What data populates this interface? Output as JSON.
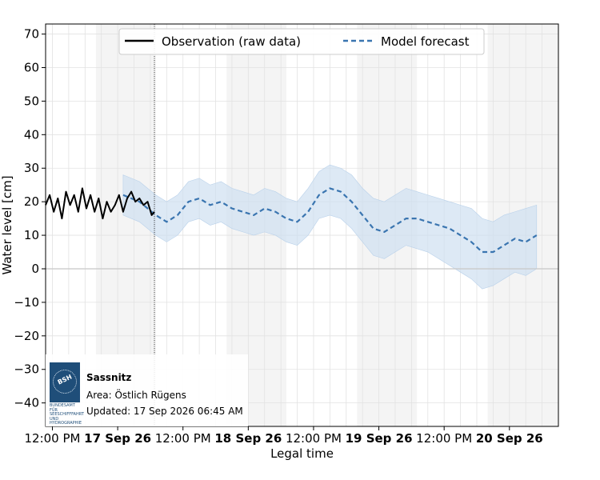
{
  "chart_data": {
    "type": "line",
    "xlabel": "Legal time",
    "ylabel": "Water level [cm]",
    "ylim": [
      -47,
      73
    ],
    "yticks": [
      70,
      60,
      50,
      40,
      30,
      20,
      10,
      0,
      -10,
      -20,
      -30,
      -40
    ],
    "xlim": [
      "2026-09-16 10:45",
      "2026-09-20 09:00"
    ],
    "xticks": [
      {
        "t": "2026-09-16 12:00",
        "label": "12:00 PM",
        "bold": false
      },
      {
        "t": "2026-09-17 00:00",
        "label": "17 Sep 26",
        "bold": true
      },
      {
        "t": "2026-09-17 12:00",
        "label": "12:00 PM",
        "bold": false
      },
      {
        "t": "2026-09-18 00:00",
        "label": "18 Sep 26",
        "bold": true
      },
      {
        "t": "2026-09-18 12:00",
        "label": "12:00 PM",
        "bold": false
      },
      {
        "t": "2026-09-19 00:00",
        "label": "19 Sep 26",
        "bold": true
      },
      {
        "t": "2026-09-19 12:00",
        "label": "12:00 PM",
        "bold": false
      },
      {
        "t": "2026-09-20 00:00",
        "label": "20 Sep 26",
        "bold": true
      }
    ],
    "night_bands": [
      [
        "2026-09-16 20:00",
        "2026-09-17 07:00"
      ],
      [
        "2026-09-17 20:00",
        "2026-09-18 07:00"
      ],
      [
        "2026-09-18 20:00",
        "2026-09-19 07:00"
      ],
      [
        "2026-09-19 20:00",
        "2026-09-20 09:00"
      ]
    ],
    "now_marker": "2026-09-17 06:45",
    "grid": true,
    "legend_position": "top-center",
    "series": [
      {
        "name": "Observation (raw data)",
        "style": "solid",
        "color": "#000000",
        "points": [
          [
            "2026-09-16 10:45",
            19
          ],
          [
            "2026-09-16 11:30",
            22
          ],
          [
            "2026-09-16 12:15",
            17
          ],
          [
            "2026-09-16 13:00",
            21
          ],
          [
            "2026-09-16 13:45",
            15
          ],
          [
            "2026-09-16 14:30",
            23
          ],
          [
            "2026-09-16 15:15",
            19
          ],
          [
            "2026-09-16 16:00",
            22
          ],
          [
            "2026-09-16 16:45",
            17
          ],
          [
            "2026-09-16 17:30",
            24
          ],
          [
            "2026-09-16 18:15",
            18
          ],
          [
            "2026-09-16 19:00",
            22
          ],
          [
            "2026-09-16 19:45",
            17
          ],
          [
            "2026-09-16 20:30",
            21
          ],
          [
            "2026-09-16 21:15",
            15
          ],
          [
            "2026-09-16 22:00",
            20
          ],
          [
            "2026-09-16 22:45",
            17
          ],
          [
            "2026-09-16 23:30",
            19
          ],
          [
            "2026-09-17 00:15",
            22
          ],
          [
            "2026-09-17 01:00",
            17
          ],
          [
            "2026-09-17 01:45",
            21
          ],
          [
            "2026-09-17 02:30",
            23
          ],
          [
            "2026-09-17 03:15",
            20
          ],
          [
            "2026-09-17 04:00",
            21
          ],
          [
            "2026-09-17 04:45",
            19
          ],
          [
            "2026-09-17 05:30",
            20
          ],
          [
            "2026-09-17 06:15",
            16
          ],
          [
            "2026-09-17 06:45",
            17
          ]
        ]
      },
      {
        "name": "Model forecast",
        "style": "dashed",
        "color": "#3a75b0",
        "band_color": "#cfe0f1",
        "points": [
          [
            "2026-09-17 01:00",
            22,
            28,
            16
          ],
          [
            "2026-09-17 04:00",
            20,
            26,
            14
          ],
          [
            "2026-09-17 07:00",
            16,
            22,
            10
          ],
          [
            "2026-09-17 09:00",
            14,
            20,
            8
          ],
          [
            "2026-09-17 11:00",
            16,
            22,
            10
          ],
          [
            "2026-09-17 13:00",
            20,
            26,
            14
          ],
          [
            "2026-09-17 15:00",
            21,
            27,
            15
          ],
          [
            "2026-09-17 17:00",
            19,
            25,
            13
          ],
          [
            "2026-09-17 19:00",
            20,
            26,
            14
          ],
          [
            "2026-09-17 21:00",
            18,
            24,
            12
          ],
          [
            "2026-09-17 23:00",
            17,
            23,
            11
          ],
          [
            "2026-09-18 01:00",
            16,
            22,
            10
          ],
          [
            "2026-09-18 03:00",
            18,
            24,
            11
          ],
          [
            "2026-09-18 05:00",
            17,
            23,
            10
          ],
          [
            "2026-09-18 07:00",
            15,
            21,
            8
          ],
          [
            "2026-09-18 09:00",
            14,
            20,
            7
          ],
          [
            "2026-09-18 11:00",
            17,
            24,
            10
          ],
          [
            "2026-09-18 13:00",
            22,
            29,
            15
          ],
          [
            "2026-09-18 15:00",
            24,
            31,
            16
          ],
          [
            "2026-09-18 17:00",
            23,
            30,
            15
          ],
          [
            "2026-09-18 19:00",
            20,
            28,
            12
          ],
          [
            "2026-09-18 21:00",
            16,
            24,
            8
          ],
          [
            "2026-09-18 23:00",
            12,
            21,
            4
          ],
          [
            "2026-09-19 01:00",
            11,
            20,
            3
          ],
          [
            "2026-09-19 03:00",
            13,
            22,
            5
          ],
          [
            "2026-09-19 05:00",
            15,
            24,
            7
          ],
          [
            "2026-09-19 07:00",
            15,
            23,
            6
          ],
          [
            "2026-09-19 09:00",
            14,
            22,
            5
          ],
          [
            "2026-09-19 11:00",
            13,
            21,
            3
          ],
          [
            "2026-09-19 13:00",
            12,
            20,
            1
          ],
          [
            "2026-09-19 15:00",
            10,
            19,
            -1
          ],
          [
            "2026-09-19 17:00",
            8,
            18,
            -3
          ],
          [
            "2026-09-19 19:00",
            5,
            15,
            -6
          ],
          [
            "2026-09-19 21:00",
            5,
            14,
            -5
          ],
          [
            "2026-09-19 23:00",
            7,
            16,
            -3
          ],
          [
            "2026-09-20 01:00",
            9,
            17,
            -1
          ],
          [
            "2026-09-20 03:00",
            8,
            18,
            -2
          ],
          [
            "2026-09-20 05:00",
            10,
            19,
            0
          ]
        ]
      }
    ]
  },
  "info": {
    "logo_text": "BSH",
    "logo_caption": "BUNDESAMT FÜR\nSEESCHIFFFAHRT\nUND\nHYDROGRAPHIE",
    "station": "Sassnitz",
    "area": "Area: Östlich Rügens",
    "updated": "Updated: 17 Sep 2026 06:45 AM"
  }
}
